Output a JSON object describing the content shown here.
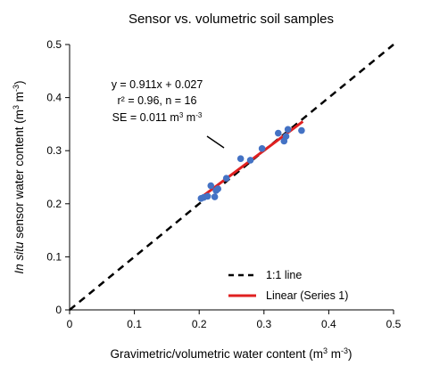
{
  "chart_data": {
    "type": "scatter",
    "title": "Sensor vs. volumetric soil samples",
    "xlabel": {
      "prefix": "Gravimetric/volumetric water content (m",
      "sup1": "3",
      "mid": " m",
      "sup2": "-3",
      "suffix": ")"
    },
    "ylabel": {
      "italic": "In situ",
      "prefix": " sensor water content (m",
      "sup1": "3",
      "mid": " m",
      "sup2": "-3",
      "suffix": ")"
    },
    "xlim": [
      0,
      0.5
    ],
    "ylim": [
      0,
      0.5
    ],
    "xticks": [
      "0",
      "0.1",
      "0.2",
      "0.3",
      "0.4",
      "0.5"
    ],
    "yticks": [
      "0",
      "0.1",
      "0.2",
      "0.3",
      "0.4",
      "0.5"
    ],
    "grid": false,
    "legend_position": "bottom-right",
    "series": [
      {
        "kind": "points",
        "color": "#4472c4",
        "x": [
          0.203,
          0.207,
          0.213,
          0.218,
          0.224,
          0.226,
          0.229,
          0.242,
          0.264,
          0.279,
          0.297,
          0.322,
          0.331,
          0.334,
          0.337,
          0.358
        ],
        "y": [
          0.21,
          0.212,
          0.214,
          0.234,
          0.213,
          0.225,
          0.228,
          0.248,
          0.285,
          0.282,
          0.304,
          0.333,
          0.318,
          0.327,
          0.34,
          0.338
        ]
      },
      {
        "kind": "line",
        "name": "1:1 line",
        "style": "dashed",
        "color": "#000000",
        "x": [
          0,
          0.5
        ],
        "y": [
          0,
          0.5
        ]
      },
      {
        "kind": "line",
        "name": "Linear (Series 1)",
        "style": "solid",
        "color": "#e02020",
        "slope": 0.911,
        "intercept": 0.027,
        "x": [
          0.2,
          0.36
        ]
      }
    ],
    "annotations": {
      "equation": "y = 0.911x + 0.027",
      "r2": "r² = 0.96, n = 16",
      "se_prefix": "SE = 0.011 m",
      "se_sup1": "3",
      "se_mid": " m",
      "se_sup2": "-3"
    }
  }
}
